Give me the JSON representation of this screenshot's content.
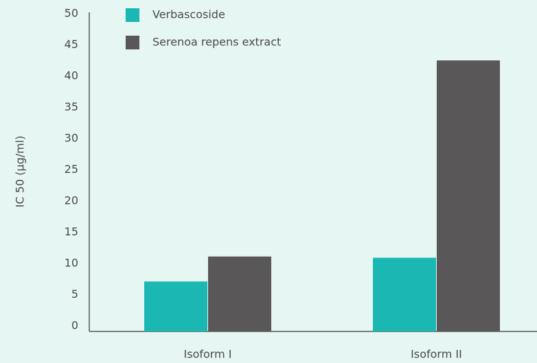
{
  "chart_data": {
    "type": "bar",
    "y_label": "IC 50 (µg/ml)",
    "categories": [
      "Isoform I",
      "Isoform II"
    ],
    "series": [
      {
        "name": "Verbascoside",
        "color": "#1bb8b3",
        "values": [
          8,
          11.8
        ]
      },
      {
        "name": "Serenoa repens extract",
        "color": "#5a5758",
        "values": [
          12,
          43.4
        ]
      }
    ],
    "ylim": [
      0,
      50
    ],
    "yticks": [
      0,
      5,
      10,
      15,
      20,
      25,
      30,
      35,
      40,
      45,
      50
    ],
    "grid": false,
    "legend": "top-left"
  }
}
